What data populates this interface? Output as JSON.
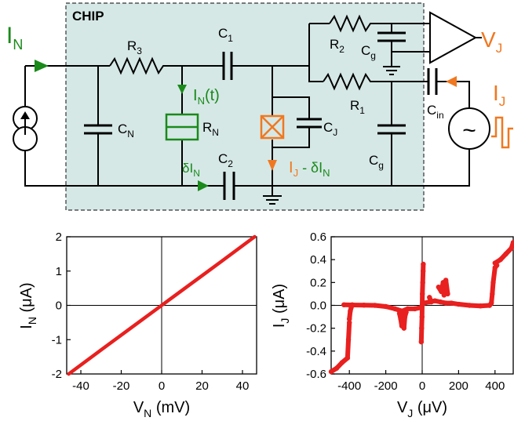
{
  "circuit": {
    "chip_label": "CHIP",
    "source_current": "I",
    "source_current_sub": "N",
    "C_N_main": "C",
    "C_N_sub": "N",
    "R3_main": "R",
    "R3_sub": "3",
    "C1_main": "C",
    "C1_sub": "1",
    "IN_t_main": "I",
    "IN_t_sub": "N",
    "IN_t_suffix": "(t)",
    "RN_main": "R",
    "RN_sub": "N",
    "C2_main": "C",
    "C2_sub": "2",
    "dIN_main": "δI",
    "dIN_sub": "N",
    "CJ_main": "C",
    "CJ_sub": "J",
    "IJ_dIN_a": "I",
    "IJ_dIN_a_sub": "J",
    "IJ_dIN_b": " - δI",
    "IJ_dIN_b_sub": "N",
    "R2_main": "R",
    "R2_sub": "2",
    "Cg_top_main": "C",
    "Cg_top_sub": "g",
    "R1_main": "R",
    "R1_sub": "1",
    "Cin_main": "C",
    "Cin_sub": "in",
    "Cg_bot_main": "C",
    "Cg_bot_sub": "g",
    "VJ_main": "V",
    "VJ_sub": "J",
    "IJ_main": "I",
    "IJ_sub": "J",
    "source_symbol": "~",
    "colors": {
      "green": "#1a8a1a",
      "orange": "#f07820",
      "chip_fill": "#d5e8e6",
      "red": "#e8201f"
    }
  },
  "chart_data": [
    {
      "type": "line",
      "xlabel_main": "V",
      "xlabel_sub": "N",
      "xlabel_unit": " (mV)",
      "ylabel_main": "I",
      "ylabel_sub": "N",
      "ylabel_unit": " (μA)",
      "xlim": [
        -47,
        47
      ],
      "ylim": [
        -2,
        2
      ],
      "xticks": [
        "-40",
        "-20",
        "0",
        "20",
        "40"
      ],
      "yticks": [
        "-2",
        "-1",
        "0",
        "1",
        "2"
      ],
      "series": [
        {
          "x": [
            -46,
            -30,
            -15,
            0,
            15,
            30,
            46
          ],
          "y": [
            -2.0,
            -1.3,
            -0.65,
            0.0,
            0.65,
            1.3,
            2.0
          ]
        }
      ],
      "color": "#e8201f",
      "grid": false
    },
    {
      "type": "scatter",
      "xlabel_main": "V",
      "xlabel_sub": "J",
      "xlabel_unit": " (μV)",
      "ylabel_main": "I",
      "ylabel_sub": "J",
      "ylabel_unit": " (μA)",
      "xlim": [
        -500,
        500
      ],
      "ylim": [
        -0.6,
        0.6
      ],
      "xticks": [
        "-400",
        "-200",
        "0",
        "200",
        "400"
      ],
      "yticks": [
        "-0.6",
        "-0.4",
        "-0.2",
        "0.0",
        "0.2",
        "0.4",
        "0.6"
      ],
      "series": [
        {
          "x": [
            -500,
            -470,
            -440,
            -410,
            -405,
            -400
          ],
          "y": [
            -0.58,
            -0.55,
            -0.5,
            -0.46,
            -0.3,
            -0.15
          ]
        },
        {
          "x": [
            -400,
            -395,
            -390,
            -388,
            -385
          ],
          "y": [
            -0.12,
            -0.05,
            -0.02,
            0.0,
            0.005
          ]
        },
        {
          "x": [
            -430,
            -380,
            -320,
            -260,
            -200,
            -150,
            -110,
            -80,
            -40,
            -10
          ],
          "y": [
            0.005,
            0.003,
            0.002,
            0.0,
            -0.01,
            -0.03,
            -0.05,
            -0.03,
            -0.03,
            -0.02
          ]
        },
        {
          "x": [
            -125,
            -118,
            -112,
            -105,
            -100,
            -95,
            -88
          ],
          "y": [
            -0.07,
            -0.12,
            -0.18,
            -0.08,
            -0.2,
            -0.1,
            -0.06
          ]
        },
        {
          "x": [
            -5,
            -3,
            -1,
            0,
            1,
            3,
            5,
            6
          ],
          "y": [
            -0.32,
            -0.2,
            -0.1,
            0.0,
            0.1,
            0.2,
            0.3,
            0.36
          ]
        },
        {
          "x": [
            10,
            40,
            70,
            100,
            130,
            160,
            200,
            260,
            320,
            370
          ],
          "y": [
            0.02,
            0.03,
            0.04,
            0.03,
            0.02,
            0.02,
            0.01,
            0.0,
            -0.005,
            0.0
          ]
        },
        {
          "x": [
            90,
            105,
            115,
            120,
            130,
            140
          ],
          "y": [
            0.16,
            0.12,
            0.2,
            0.09,
            0.22,
            0.1
          ]
        },
        {
          "x": [
            40,
            50
          ],
          "y": [
            0.07,
            0.03
          ]
        },
        {
          "x": [
            370,
            380,
            385,
            390,
            400,
            410
          ],
          "y": [
            0.0,
            0.02,
            0.1,
            0.2,
            0.33,
            0.35
          ]
        },
        {
          "x": [
            400,
            430,
            460,
            490,
            500
          ],
          "y": [
            0.37,
            0.4,
            0.45,
            0.5,
            0.55
          ]
        }
      ],
      "color": "#e8201f",
      "grid": false
    }
  ]
}
